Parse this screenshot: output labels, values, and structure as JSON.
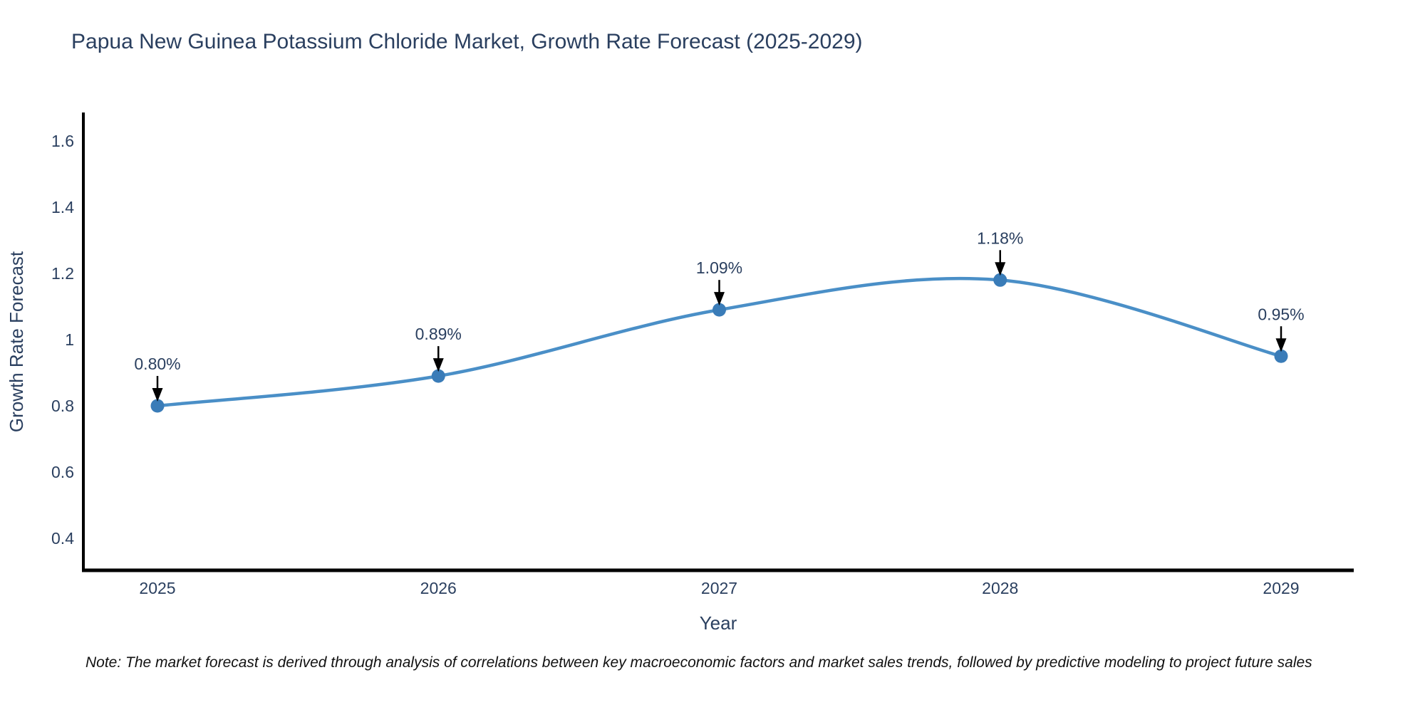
{
  "title": "Papua New Guinea Potassium Chloride Market, Growth Rate Forecast (2025-2029)",
  "note": "Note: The market forecast is derived through analysis of correlations between key macroeconomic factors and market sales trends, followed by predictive modeling to project future sales",
  "chart_data": {
    "type": "line",
    "title": "Papua New Guinea Potassium Chloride Market, Growth Rate Forecast (2025-2029)",
    "xlabel": "Year",
    "ylabel": "Growth Rate Forecast",
    "x": [
      2025,
      2026,
      2027,
      2028,
      2029
    ],
    "values": [
      0.8,
      0.89,
      1.09,
      1.18,
      0.95
    ],
    "point_labels": [
      "0.80%",
      "0.89%",
      "1.09%",
      "1.18%",
      "0.95%"
    ],
    "xtick_labels": [
      "2025",
      "2026",
      "2027",
      "2028",
      "2029"
    ],
    "yticks": [
      0.4,
      0.6,
      0.8,
      1,
      1.2,
      1.4,
      1.6
    ],
    "ytick_labels": [
      "0.4",
      "0.6",
      "0.8",
      "1",
      "1.2",
      "1.4",
      "1.6"
    ],
    "ylim": [
      0.3,
      1.68
    ],
    "grid": false,
    "legend": "none",
    "line_style": "spline",
    "colors": {
      "line": "#4a8fc7",
      "marker": "#3a7cb8",
      "arrow": "#000000",
      "axis": "#000000",
      "text": "#2a3f5f",
      "note_text": "#111111",
      "background": "#ffffff"
    }
  }
}
